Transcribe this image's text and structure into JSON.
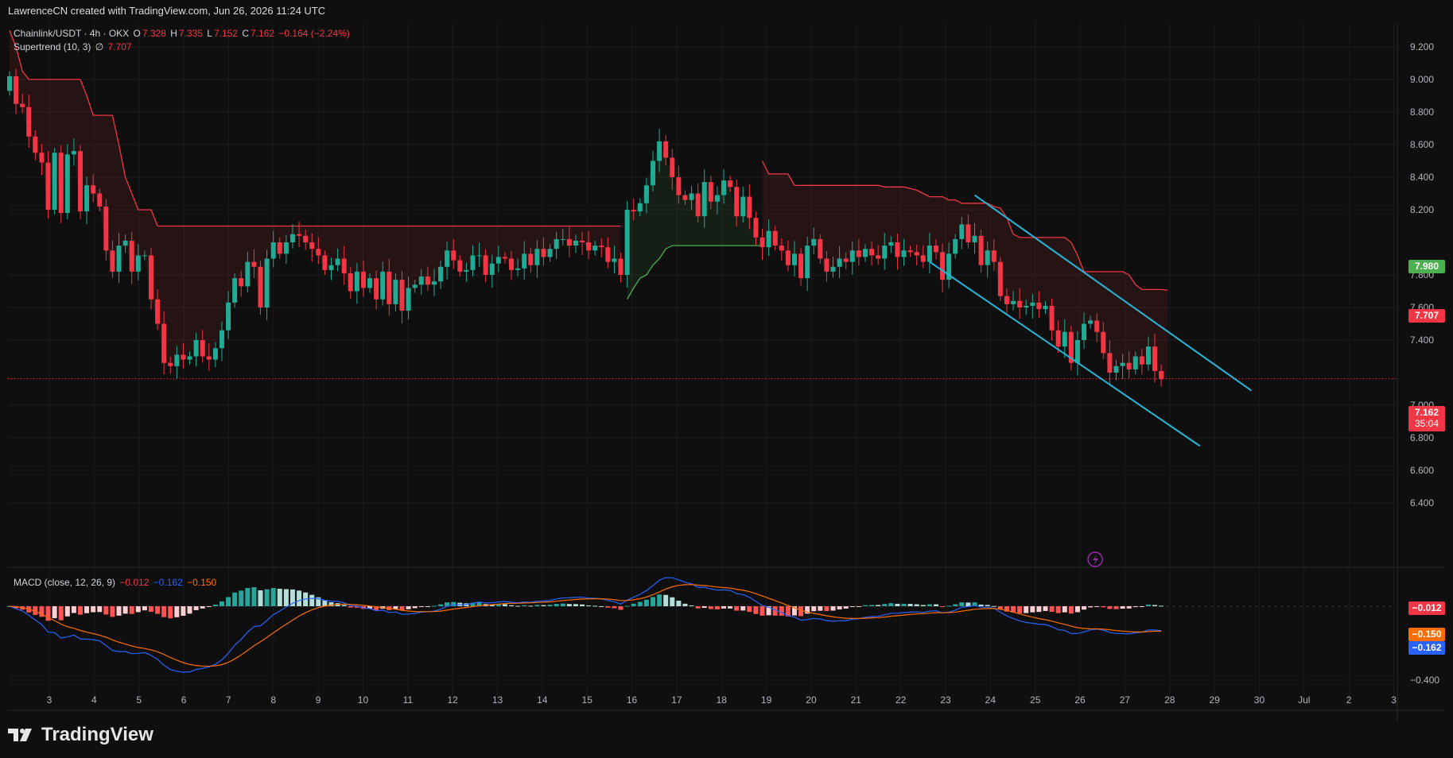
{
  "caption": "LawrenceCN created with TradingView.com, Jun 26, 2026 11:24 UTC",
  "legend": {
    "symbol": "Chainlink/USDT · 4h · OKX",
    "o_label": "O",
    "o_val": "7.328",
    "h_label": "H",
    "h_val": "7.335",
    "l_label": "L",
    "l_val": "7.152",
    "c_label": "C",
    "c_val": "7.162",
    "change": "−0.164 (−2.24%)",
    "supertrend_label": "Supertrend (10, 3)",
    "supertrend_symbol": "∅",
    "supertrend_val": "7.707",
    "macd_label": "MACD (close, 12, 26, 9)",
    "macd_hist": "−0.012",
    "macd_line": "−0.162",
    "macd_signal": "−0.150"
  },
  "brand": "TradingView",
  "colors": {
    "background": "#0f0f0f",
    "up": "#22ab94",
    "down": "#f23645",
    "supertrend_down": "#f23645",
    "supertrend_up": "#4caf50",
    "channel": "#22b7d8",
    "macd_line": "#2962ff",
    "signal_line": "#ff6d00"
  },
  "chart_data": [
    {
      "type": "candlestick",
      "title": "Chainlink/USDT · 4h · OKX",
      "ylim": [
        6.3,
        9.35
      ],
      "y_ticks": [
        "9.200",
        "9.000",
        "8.800",
        "8.600",
        "8.400",
        "8.200",
        "7.800",
        "7.600",
        "7.400",
        "7.000",
        "6.800",
        "6.600",
        "6.400"
      ],
      "x_tick_labels": [
        "3",
        "4",
        "5",
        "6",
        "7",
        "8",
        "9",
        "10",
        "11",
        "12",
        "13",
        "14",
        "15",
        "16",
        "17",
        "18",
        "19",
        "20",
        "21",
        "22",
        "23",
        "24",
        "25",
        "26",
        "27",
        "28",
        "29",
        "30",
        "Jul",
        "2",
        "3"
      ],
      "price_labels": {
        "supertrend_up_level": "7.980",
        "supertrend": "7.707",
        "last_price": "7.162",
        "countdown": "35:04"
      },
      "closes": [
        9.02,
        8.85,
        8.83,
        8.65,
        8.55,
        8.49,
        8.2,
        8.55,
        8.18,
        8.54,
        8.56,
        8.19,
        8.35,
        8.3,
        8.22,
        7.95,
        7.82,
        7.98,
        8.01,
        7.82,
        7.92,
        7.92,
        7.65,
        7.5,
        7.26,
        7.24,
        7.31,
        7.28,
        7.3,
        7.4,
        7.3,
        7.28,
        7.35,
        7.46,
        7.63,
        7.78,
        7.73,
        7.88,
        7.85,
        7.6,
        7.9,
        8.0,
        7.93,
        8.0,
        8.05,
        8.04,
        8.0,
        7.96,
        7.92,
        7.83,
        7.86,
        7.9,
        7.81,
        7.7,
        7.82,
        7.72,
        7.78,
        7.65,
        7.82,
        7.62,
        7.77,
        7.58,
        7.72,
        7.74,
        7.79,
        7.74,
        7.76,
        7.85,
        7.95,
        7.89,
        7.82,
        7.83,
        7.92,
        7.92,
        7.8,
        7.87,
        7.91,
        7.9,
        7.83,
        7.84,
        7.93,
        7.86,
        7.96,
        7.91,
        7.96,
        8.02,
        8.02,
        7.98,
        8.01,
        8.0,
        7.95,
        7.98,
        7.97,
        7.88,
        7.9,
        7.8,
        8.2,
        8.19,
        8.24,
        8.35,
        8.5,
        8.62,
        8.52,
        8.4,
        8.29,
        8.26,
        8.3,
        8.16,
        8.37,
        8.25,
        8.29,
        8.38,
        8.34,
        8.16,
        8.28,
        8.15,
        8.03,
        7.97,
        8.07,
        7.98,
        7.95,
        7.86,
        7.93,
        7.78,
        7.98,
        8.02,
        7.9,
        7.82,
        7.85,
        7.9,
        7.88,
        7.95,
        7.91,
        7.96,
        7.92,
        7.9,
        7.98,
        8.0,
        7.91,
        7.95,
        7.94,
        7.92,
        7.88,
        7.98,
        7.94,
        7.77,
        7.93,
        8.02,
        8.11,
        8.0,
        8.04,
        7.86,
        7.95,
        7.88,
        7.67,
        7.62,
        7.64,
        7.6,
        7.61,
        7.63,
        7.59,
        7.61,
        7.46,
        7.36,
        7.45,
        7.26,
        7.4,
        7.5,
        7.52,
        7.45,
        7.32,
        7.2,
        7.24,
        7.26,
        7.22,
        7.3,
        7.25,
        7.36,
        7.21,
        7.16
      ],
      "supertrend": {
        "down_segments": [
          {
            "start": 0,
            "values": [
              9.3,
              9.2,
              9.05,
              9.0,
              9.0,
              9.0,
              9.0,
              9.0,
              9.0,
              9.0,
              9.0,
              9.0,
              8.9,
              8.78,
              8.78,
              8.78,
              8.78,
              8.6,
              8.4,
              8.3,
              8.2,
              8.2,
              8.2,
              8.1,
              8.1,
              8.1,
              8.1,
              8.1,
              8.1,
              8.1,
              8.1,
              8.1,
              8.1,
              8.1,
              8.1,
              8.1,
              8.1,
              8.1,
              8.1,
              8.1,
              8.1,
              8.1,
              8.1,
              8.1,
              8.1,
              8.1,
              8.1,
              8.1,
              8.1,
              8.1,
              8.1,
              8.1,
              8.1,
              8.1,
              8.1,
              8.1,
              8.1,
              8.1,
              8.1,
              8.1,
              8.1,
              8.1,
              8.1,
              8.1,
              8.1,
              8.1,
              8.1,
              8.1,
              8.1,
              8.1,
              8.1,
              8.1,
              8.1,
              8.1,
              8.1,
              8.1,
              8.1,
              8.1,
              8.1,
              8.1,
              8.1,
              8.1,
              8.1,
              8.1,
              8.1,
              8.1,
              8.1,
              8.1,
              8.1,
              8.1,
              8.1,
              8.1,
              8.1,
              8.1,
              8.1,
              8.1
            ]
          },
          {
            "start": 117,
            "values": [
              8.5,
              8.42,
              8.42,
              8.42,
              8.42,
              8.35,
              8.35,
              8.35,
              8.35,
              8.35,
              8.35,
              8.35,
              8.35,
              8.35,
              8.35,
              8.35,
              8.35,
              8.35,
              8.35,
              8.34,
              8.34,
              8.34,
              8.34,
              8.33,
              8.32,
              8.3,
              8.28,
              8.28,
              8.28,
              8.26,
              8.26,
              8.24,
              8.24,
              8.24,
              8.24,
              8.24,
              8.22,
              8.21,
              8.15,
              8.05,
              8.03,
              8.03,
              8.03,
              8.03,
              8.03,
              8.03,
              8.03,
              8.03,
              8.0,
              7.92,
              7.82,
              7.82,
              7.82,
              7.82,
              7.82,
              7.82,
              7.82,
              7.8,
              7.74,
              7.71,
              7.71,
              7.71,
              7.71,
              7.707
            ]
          }
        ],
        "up_segments": [
          {
            "start": 96,
            "values": [
              7.65,
              7.72,
              7.78,
              7.8,
              7.86,
              7.9,
              7.96,
              7.98,
              7.98,
              7.98,
              7.98,
              7.98,
              7.98,
              7.98,
              7.98,
              7.98,
              7.98,
              7.98,
              7.98,
              7.98,
              7.98,
              7.98
            ]
          }
        ]
      },
      "channel": {
        "upper": {
          "from": [
            150,
            8.29
          ],
          "to": [
            193,
            7.09
          ]
        },
        "lower": {
          "from": [
            143,
            7.88
          ],
          "to": [
            185,
            6.75
          ]
        }
      }
    },
    {
      "type": "macd",
      "title": "MACD (close, 12, 26, 9)",
      "ylim": [
        -0.45,
        0.12
      ],
      "y_ticks": [
        "−0.400"
      ],
      "price_labels": {
        "histogram": "−0.012",
        "signal": "−0.150",
        "macd": "−0.162"
      }
    }
  ]
}
